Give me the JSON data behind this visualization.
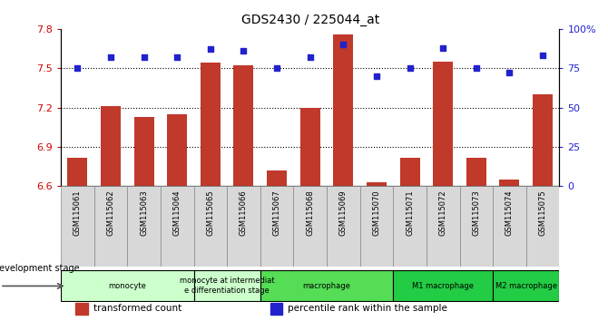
{
  "title": "GDS2430 / 225044_at",
  "samples": [
    "GSM115061",
    "GSM115062",
    "GSM115063",
    "GSM115064",
    "GSM115065",
    "GSM115066",
    "GSM115067",
    "GSM115068",
    "GSM115069",
    "GSM115070",
    "GSM115071",
    "GSM115072",
    "GSM115073",
    "GSM115074",
    "GSM115075"
  ],
  "bar_values": [
    6.82,
    7.21,
    7.13,
    7.15,
    7.54,
    7.52,
    6.72,
    7.2,
    7.76,
    6.63,
    6.82,
    7.55,
    6.82,
    6.65,
    7.3
  ],
  "dot_values": [
    75,
    82,
    82,
    82,
    87,
    86,
    75,
    82,
    90,
    70,
    75,
    88,
    75,
    72,
    83
  ],
  "ylim_left": [
    6.6,
    7.8
  ],
  "ylim_right": [
    0,
    100
  ],
  "yticks_left": [
    6.6,
    6.9,
    7.2,
    7.5,
    7.8
  ],
  "yticks_right": [
    0,
    25,
    50,
    75,
    100
  ],
  "ytick_labels_left": [
    "6.6",
    "6.9",
    "7.2",
    "7.5",
    "7.8"
  ],
  "ytick_labels_right": [
    "0",
    "25",
    "50",
    "75",
    "100%"
  ],
  "hlines": [
    6.9,
    7.2,
    7.5
  ],
  "bar_color": "#c0392b",
  "dot_color": "#2222cc",
  "groups": [
    {
      "label": "monocyte",
      "start": 0,
      "end": 4,
      "color": "#ccffcc"
    },
    {
      "label": "monocyte at intermediat\ne differentiation stage",
      "start": 4,
      "end": 6,
      "color": "#ccffcc"
    },
    {
      "label": "macrophage",
      "start": 6,
      "end": 10,
      "color": "#55dd55"
    },
    {
      "label": "M1 macrophage",
      "start": 10,
      "end": 13,
      "color": "#22cc44"
    },
    {
      "label": "M2 macrophage",
      "start": 13,
      "end": 15,
      "color": "#22cc44"
    }
  ],
  "legend_items": [
    {
      "color": "#c0392b",
      "label": "transformed count"
    },
    {
      "color": "#2222cc",
      "label": "percentile rank within the sample"
    }
  ],
  "dev_stage_label": "development stage"
}
